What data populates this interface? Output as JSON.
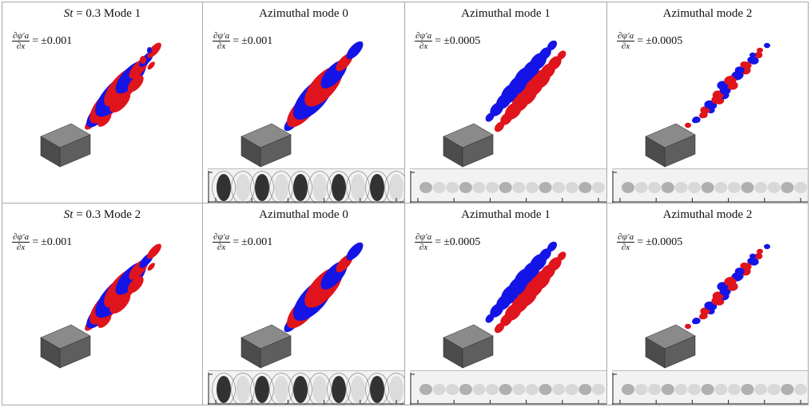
{
  "formula": {
    "numerator": "∂ψ′a",
    "denominator": "∂x",
    "sign": "="
  },
  "rows": [
    {
      "cells": [
        {
          "title_prefix": "St",
          "title": " = 0.3 Mode 1",
          "value": "±0.001",
          "wake": "total",
          "spread": 1.0,
          "strip": false
        },
        {
          "title_prefix": "",
          "title": "Azimuthal mode 0",
          "value": "±0.001",
          "wake": "axisymmetric",
          "spread": 1.0,
          "strip": true
        },
        {
          "title_prefix": "",
          "title": "Azimuthal mode 1",
          "value": "±0.0005",
          "wake": "helical",
          "spread": 1.0,
          "strip": true
        },
        {
          "title_prefix": "",
          "title": "Azimuthal mode 2",
          "value": "±0.0005",
          "wake": "blobs",
          "spread": 1.0,
          "strip": true
        }
      ]
    },
    {
      "cells": [
        {
          "title_prefix": "St",
          "title": " = 0.3 Mode 2",
          "value": "±0.001",
          "wake": "total",
          "spread": 1.0,
          "strip": false
        },
        {
          "title_prefix": "",
          "title": "Azimuthal mode 0",
          "value": "±0.001",
          "wake": "axisymmetric",
          "spread": 1.0,
          "strip": true
        },
        {
          "title_prefix": "",
          "title": "Azimuthal mode 1",
          "value": "±0.0005",
          "wake": "helical",
          "spread": 1.0,
          "strip": true
        },
        {
          "title_prefix": "",
          "title": "Azimuthal mode 2",
          "value": "±0.0005",
          "wake": "blobs",
          "spread": 1.0,
          "strip": true
        }
      ]
    }
  ],
  "colors": {
    "positive": "#e0141c",
    "negative": "#1414e6",
    "block": "#555555"
  }
}
